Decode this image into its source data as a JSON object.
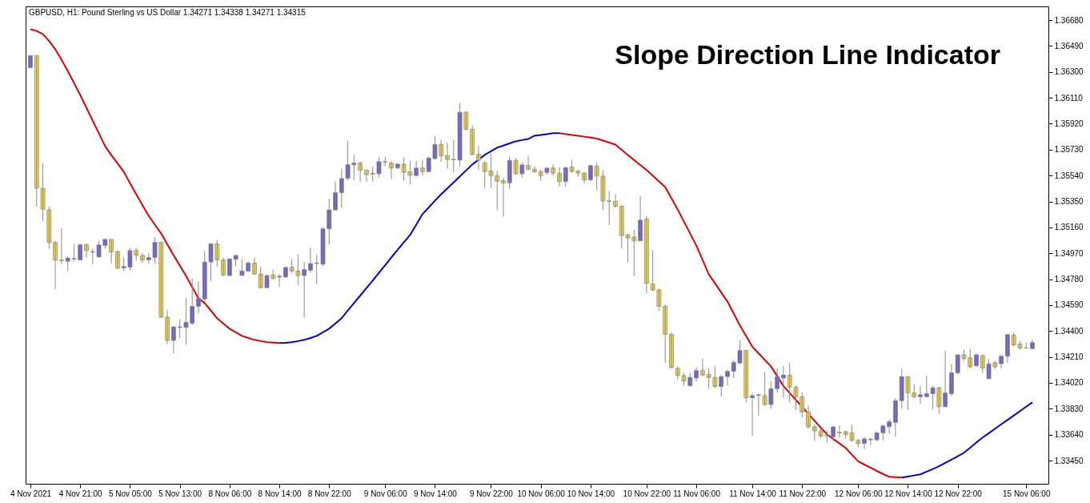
{
  "chart_data": {
    "type": "candlestick",
    "title": "Slope Direction Line Indicator",
    "subtitle": "GBPUSD, H1:  Pound Sterling vs US Dollar  1.34271 1.34338 1.34271 1.34315",
    "categories": [
      "4 Nov 2021",
      null,
      null,
      null,
      null,
      null,
      null,
      null,
      "4 Nov 21:00",
      null,
      null,
      null,
      null,
      null,
      null,
      null,
      "5 Nov 05:00",
      null,
      null,
      null,
      null,
      null,
      null,
      null,
      "5 Nov 13:00",
      null,
      null,
      null,
      null,
      null,
      null,
      null,
      "8 Nov 06:00",
      null,
      null,
      null,
      null,
      null,
      null,
      null,
      "8 Nov 14:00",
      null,
      null,
      null,
      null,
      null,
      null,
      null,
      "8 Nov 22:00",
      null,
      null,
      null,
      null,
      null,
      null,
      null,
      null,
      "9 Nov 06:00",
      null,
      null,
      null,
      null,
      null,
      null,
      null,
      "9 Nov 14:00",
      null,
      null,
      null,
      null,
      null,
      null,
      null,
      null,
      "9 Nov 22:00",
      null,
      null,
      null,
      null,
      null,
      null,
      null,
      "10 Nov 06:00",
      null,
      null,
      null,
      null,
      null,
      null,
      null,
      "10 Nov 14:00",
      null,
      null,
      null,
      null,
      null,
      null,
      null,
      null,
      "10 Nov 22:00",
      null,
      null,
      null,
      null,
      null,
      null,
      null,
      "11 Nov 06:00",
      null,
      null,
      null,
      null,
      null,
      null,
      null,
      null,
      "11 Nov 14:00",
      null,
      null,
      null,
      null,
      null,
      null,
      null,
      "11 Nov 22:00",
      null,
      null,
      null,
      null,
      null,
      null,
      null,
      null,
      "12 Nov 06:00",
      null,
      null,
      null,
      null,
      null,
      null,
      null,
      "12 Nov 14:00",
      null,
      null,
      null,
      null,
      null,
      null,
      null,
      "12 Nov 22:00",
      null,
      null,
      null,
      null,
      null,
      null,
      null,
      null,
      null,
      null,
      "15 Nov 06:00",
      null
    ],
    "ohlc": [
      [
        1.36331,
        1.3642,
        1.36331,
        1.3642
      ],
      [
        1.3642,
        1.3642,
        1.35315,
        1.35447
      ],
      [
        1.35447,
        1.35631,
        1.35209,
        1.35293
      ],
      [
        1.35288,
        1.3531,
        1.35001,
        1.3505
      ],
      [
        1.3505,
        1.35061,
        1.34707,
        1.34921
      ],
      [
        1.34921,
        1.35153,
        1.3489,
        1.34917
      ],
      [
        1.34912,
        1.3495,
        1.3484,
        1.34935
      ],
      [
        1.34928,
        1.35034,
        1.34912,
        1.34932
      ],
      [
        1.34921,
        1.35039,
        1.34917,
        1.35032
      ],
      [
        1.35032,
        1.35039,
        1.34939,
        1.3499
      ],
      [
        1.34979,
        1.35005,
        1.3489,
        1.34983
      ],
      [
        1.34943,
        1.35061,
        1.34939,
        1.35032
      ],
      [
        1.35027,
        1.35078,
        1.35005,
        1.35072
      ],
      [
        1.35072,
        1.35072,
        1.34895,
        1.34979
      ],
      [
        1.34983,
        1.3499,
        1.34851,
        1.34862
      ],
      [
        1.34862,
        1.34939,
        1.3484,
        1.34873
      ],
      [
        1.34868,
        1.3501,
        1.34844,
        1.3499
      ],
      [
        1.3499,
        1.3501,
        1.34917,
        1.34957
      ],
      [
        1.34954,
        1.34972,
        1.34899,
        1.34921
      ],
      [
        1.34921,
        1.34972,
        1.34895,
        1.34939
      ],
      [
        1.34939,
        1.35087,
        1.34895,
        1.3505
      ],
      [
        1.3505,
        1.3505,
        1.34497,
        1.34501
      ],
      [
        1.34501,
        1.34552,
        1.34303,
        1.34331
      ],
      [
        1.34331,
        1.34435,
        1.34236,
        1.34431
      ],
      [
        1.34426,
        1.34486,
        1.34347,
        1.34431
      ],
      [
        1.34426,
        1.34641,
        1.34298,
        1.34464
      ],
      [
        1.34457,
        1.34784,
        1.34442,
        1.34581
      ],
      [
        1.34581,
        1.34762,
        1.3453,
        1.34641
      ],
      [
        1.34634,
        1.34987,
        1.34612,
        1.34906
      ],
      [
        1.34906,
        1.35045,
        1.34767,
        1.35039
      ],
      [
        1.35039,
        1.35067,
        1.34873,
        1.34921
      ],
      [
        1.34921,
        1.34939,
        1.34802,
        1.34811
      ],
      [
        1.34807,
        1.34935,
        1.34802,
        1.34928
      ],
      [
        1.34926,
        1.34957,
        1.34873,
        1.34954
      ],
      [
        1.34807,
        1.34928,
        1.34807,
        1.3484
      ],
      [
        1.3484,
        1.34912,
        1.34833,
        1.34899
      ],
      [
        1.34899,
        1.34939,
        1.34811,
        1.34818
      ],
      [
        1.34818,
        1.34873,
        1.34711,
        1.34718
      ],
      [
        1.34718,
        1.34813,
        1.34711,
        1.34807
      ],
      [
        1.34811,
        1.34851,
        1.34778,
        1.34785
      ],
      [
        1.34796,
        1.34818,
        1.34723,
        1.34802
      ],
      [
        1.34796,
        1.34873,
        1.34789,
        1.34866
      ],
      [
        1.34868,
        1.34928,
        1.34824,
        1.3484
      ],
      [
        1.3484,
        1.34961,
        1.34736,
        1.34807
      ],
      [
        1.34807,
        1.34906,
        1.34497,
        1.34851
      ],
      [
        1.34846,
        1.3501,
        1.34829,
        1.34895
      ],
      [
        1.34895,
        1.34961,
        1.34745,
        1.34899
      ],
      [
        1.3489,
        1.3516,
        1.34877,
        1.35149
      ],
      [
        1.35149,
        1.3537,
        1.35034,
        1.35288
      ],
      [
        1.35288,
        1.35496,
        1.35282,
        1.35414
      ],
      [
        1.35414,
        1.35591,
        1.35304,
        1.35518
      ],
      [
        1.3552,
        1.35796,
        1.35503,
        1.3562
      ],
      [
        1.35618,
        1.3569,
        1.35503,
        1.35631
      ],
      [
        1.35631,
        1.35642,
        1.35492,
        1.3558
      ],
      [
        1.3558,
        1.35584,
        1.35496,
        1.35547
      ],
      [
        1.35551,
        1.35606,
        1.35496,
        1.35556
      ],
      [
        1.35553,
        1.35679,
        1.35525,
        1.35642
      ],
      [
        1.35642,
        1.35679,
        1.35606,
        1.35637
      ],
      [
        1.35631,
        1.35646,
        1.35514,
        1.35595
      ],
      [
        1.35595,
        1.35629,
        1.35591,
        1.35624
      ],
      [
        1.35624,
        1.35673,
        1.35503,
        1.35564
      ],
      [
        1.35567,
        1.35646,
        1.35474,
        1.35542
      ],
      [
        1.3554,
        1.35646,
        1.35536,
        1.35595
      ],
      [
        1.35595,
        1.35657,
        1.3554,
        1.35569
      ],
      [
        1.35569,
        1.35679,
        1.35564,
        1.35668
      ],
      [
        1.35664,
        1.35827,
        1.35657,
        1.35768
      ],
      [
        1.35768,
        1.35801,
        1.35642,
        1.35684
      ],
      [
        1.35686,
        1.35779,
        1.35591,
        1.35657
      ],
      [
        1.35659,
        1.35801,
        1.35562,
        1.35655
      ],
      [
        1.35653,
        1.36071,
        1.35606,
        1.36004
      ],
      [
        1.36004,
        1.36011,
        1.35872,
        1.35878
      ],
      [
        1.35878,
        1.35907,
        1.35686,
        1.35695
      ],
      [
        1.35695,
        1.35757,
        1.3558,
        1.35651
      ],
      [
        1.35631,
        1.35646,
        1.35447,
        1.35569
      ],
      [
        1.35573,
        1.35701,
        1.35452,
        1.3554
      ],
      [
        1.3554,
        1.35576,
        1.35286,
        1.35498
      ],
      [
        1.35503,
        1.35525,
        1.35237,
        1.35487
      ],
      [
        1.35487,
        1.35679,
        1.35443,
        1.35651
      ],
      [
        1.35651,
        1.35668,
        1.35547,
        1.35553
      ],
      [
        1.35553,
        1.35635,
        1.35525,
        1.35618
      ],
      [
        1.35613,
        1.35679,
        1.35576,
        1.35587
      ],
      [
        1.35584,
        1.35609,
        1.35558,
        1.35569
      ],
      [
        1.35569,
        1.35584,
        1.35503,
        1.3554
      ],
      [
        1.35562,
        1.35595,
        1.35547,
        1.35595
      ],
      [
        1.35595,
        1.3562,
        1.3554,
        1.35558
      ],
      [
        1.35558,
        1.35602,
        1.35458,
        1.35496
      ],
      [
        1.35496,
        1.35602,
        1.35458,
        1.35598
      ],
      [
        1.35602,
        1.35657,
        1.35562,
        1.35569
      ],
      [
        1.35573,
        1.3558,
        1.35531,
        1.35558
      ],
      [
        1.35558,
        1.35564,
        1.3548,
        1.35509
      ],
      [
        1.35509,
        1.3562,
        1.35496,
        1.35613
      ],
      [
        1.35609,
        1.35635,
        1.35432,
        1.35536
      ],
      [
        1.35536,
        1.3558,
        1.35288,
        1.35354
      ],
      [
        1.35354,
        1.35425,
        1.35178,
        1.3535
      ],
      [
        1.3535,
        1.35403,
        1.35304,
        1.35315
      ],
      [
        1.35315,
        1.35326,
        1.35005,
        1.351
      ],
      [
        1.35105,
        1.35116,
        1.34906,
        1.35083
      ],
      [
        1.35089,
        1.35142,
        1.34802,
        1.35061
      ],
      [
        1.35061,
        1.35392,
        1.35061,
        1.35213
      ],
      [
        1.3522,
        1.35244,
        1.34678,
        1.34749
      ],
      [
        1.34745,
        1.34994,
        1.34691,
        1.347
      ],
      [
        1.34702,
        1.34711,
        1.34546,
        1.34581
      ],
      [
        1.34581,
        1.34596,
        1.34166,
        1.34375
      ],
      [
        1.34375,
        1.34391,
        1.34126,
        1.34132
      ],
      [
        1.34126,
        1.34143,
        1.34044,
        1.34073
      ],
      [
        1.34073,
        1.34093,
        1.33999,
        1.34033
      ],
      [
        1.33999,
        1.34088,
        1.33993,
        1.3406
      ],
      [
        1.34055,
        1.34132,
        1.34029,
        1.3411
      ],
      [
        1.3411,
        1.34199,
        1.34073,
        1.34077
      ],
      [
        1.34082,
        1.34126,
        1.33977,
        1.3406
      ],
      [
        1.3406,
        1.34143,
        1.33984,
        1.33993
      ],
      [
        1.33993,
        1.34077,
        1.33918,
        1.34066
      ],
      [
        1.34066,
        1.34117,
        1.33999,
        1.34104
      ],
      [
        1.34104,
        1.34188,
        1.34055,
        1.3417
      ],
      [
        1.34166,
        1.34331,
        1.34154,
        1.34258
      ],
      [
        1.34258,
        1.34258,
        1.33878,
        1.33911
      ],
      [
        1.33911,
        1.33944,
        1.33631,
        1.33926
      ],
      [
        1.33929,
        1.3394,
        1.33778,
        1.33933
      ],
      [
        1.33926,
        1.34099,
        1.33852,
        1.33861
      ],
      [
        1.33861,
        1.34033,
        1.3383,
        1.33977
      ],
      [
        1.33977,
        1.34126,
        1.33949,
        1.34066
      ],
      [
        1.34055,
        1.34143,
        1.33911,
        1.34077
      ],
      [
        1.34077,
        1.34166,
        1.33874,
        1.33989
      ],
      [
        1.33989,
        1.33999,
        1.33823,
        1.33918
      ],
      [
        1.33918,
        1.33949,
        1.33768,
        1.33807
      ],
      [
        1.33807,
        1.33852,
        1.33684,
        1.33697
      ],
      [
        1.33697,
        1.33712,
        1.33595,
        1.33668
      ],
      [
        1.33668,
        1.33684,
        1.33613,
        1.33631
      ],
      [
        1.33631,
        1.33668,
        1.3358,
        1.33635
      ],
      [
        1.33624,
        1.33706,
        1.33591,
        1.33697
      ],
      [
        1.33653,
        1.33706,
        1.33617,
        1.33657
      ],
      [
        1.33662,
        1.33668,
        1.33609,
        1.33642
      ],
      [
        1.33653,
        1.33713,
        1.33587,
        1.33598
      ],
      [
        1.33598,
        1.33609,
        1.3355,
        1.33576
      ],
      [
        1.33576,
        1.33624,
        1.33532,
        1.33609
      ],
      [
        1.33602,
        1.3362,
        1.33558,
        1.33607
      ],
      [
        1.33602,
        1.33664,
        1.33594,
        1.33653
      ],
      [
        1.33653,
        1.33713,
        1.33598,
        1.33704
      ],
      [
        1.33698,
        1.33753,
        1.33647,
        1.33735
      ],
      [
        1.3373,
        1.33907,
        1.33626,
        1.33889
      ],
      [
        1.33889,
        1.34123,
        1.33831,
        1.34066
      ],
      [
        1.34066,
        1.34066,
        1.3382,
        1.33946
      ],
      [
        1.33946,
        1.34012,
        1.33907,
        1.33918
      ],
      [
        1.33918,
        1.33999,
        1.33867,
        1.33933
      ],
      [
        1.33918,
        1.34072,
        1.33911,
        1.3394
      ],
      [
        1.3394,
        1.33999,
        1.33825,
        1.33984
      ],
      [
        1.33984,
        1.33991,
        1.33792,
        1.33845
      ],
      [
        1.33845,
        1.34255,
        1.33842,
        1.33946
      ],
      [
        1.3394,
        1.3416,
        1.33924,
        1.34094
      ],
      [
        1.34094,
        1.34226,
        1.34083,
        1.34226
      ],
      [
        1.34226,
        1.34264,
        1.34182,
        1.34198
      ],
      [
        1.34204,
        1.3427,
        1.34127,
        1.34138
      ],
      [
        1.34145,
        1.34233,
        1.34138,
        1.34226
      ],
      [
        1.3422,
        1.34226,
        1.34094,
        1.34127
      ],
      [
        1.3405,
        1.34193,
        1.3405,
        1.3416
      ],
      [
        1.34167,
        1.34182,
        1.34123,
        1.34138
      ],
      [
        1.3416,
        1.34226,
        1.34123,
        1.34215
      ],
      [
        1.34215,
        1.34374,
        1.34167,
        1.34374
      ],
      [
        1.3437,
        1.34392,
        1.34286,
        1.34299
      ],
      [
        1.34304,
        1.34326,
        1.34264,
        1.34277
      ],
      [
        1.34277,
        1.34315,
        1.34271,
        1.34275
      ],
      [
        1.34271,
        1.34338,
        1.34271,
        1.34315
      ]
    ],
    "colors": [
      "#6a5acd",
      "#f5d33c",
      "#f5d33c",
      "#f5d33c",
      "#f5d33c",
      "#f5d33c",
      "#6a5acd",
      "#6a5acd",
      "#6a5acd",
      "#f5d33c",
      "#6a5acd",
      "#6a5acd",
      "#6a5acd",
      "#f5d33c",
      "#f5d33c",
      "#6a5acd",
      "#6a5acd",
      "#f5d33c",
      "#f5d33c",
      "#6a5acd",
      "#6a5acd",
      "#f5d33c",
      "#f5d33c",
      "#6a5acd",
      "#6a5acd",
      "#6a5acd",
      "#6a5acd",
      "#6a5acd",
      "#6a5acd",
      "#6a5acd",
      "#f5d33c",
      "#f5d33c",
      "#6a5acd",
      "#6a5acd",
      "#6a5acd",
      "#6a5acd",
      "#f5d33c",
      "#f5d33c",
      "#6a5acd",
      "#f5d33c",
      "#6a5acd",
      "#6a5acd",
      "#f5d33c",
      "#f5d33c",
      "#6a5acd",
      "#6a5acd",
      "#6a5acd",
      "#6a5acd",
      "#6a5acd",
      "#6a5acd",
      "#6a5acd",
      "#6a5acd",
      "#6a5acd",
      "#f5d33c",
      "#f5d33c",
      "#6a5acd",
      "#6a5acd",
      "#f5d33c",
      "#f5d33c",
      "#6a5acd",
      "#f5d33c",
      "#f5d33c",
      "#6a5acd",
      "#f5d33c",
      "#6a5acd",
      "#6a5acd",
      "#f5d33c",
      "#f5d33c",
      "#f5d33c",
      "#6a5acd",
      "#f5d33c",
      "#f5d33c",
      "#f5d33c",
      "#f5d33c",
      "#f5d33c",
      "#f5d33c",
      "#f5d33c",
      "#6a5acd",
      "#f5d33c",
      "#6a5acd",
      "#f5d33c",
      "#f5d33c",
      "#f5d33c",
      "#6a5acd",
      "#f5d33c",
      "#f5d33c",
      "#6a5acd",
      "#f5d33c",
      "#f5d33c",
      "#f5d33c",
      "#6a5acd",
      "#f5d33c",
      "#f5d33c",
      "#f5d33c",
      "#f5d33c",
      "#f5d33c",
      "#f5d33c",
      "#f5d33c",
      "#6a5acd",
      "#f5d33c",
      "#f5d33c",
      "#f5d33c",
      "#f5d33c",
      "#f5d33c",
      "#f5d33c",
      "#f5d33c",
      "#6a5acd",
      "#6a5acd",
      "#f5d33c",
      "#f5d33c",
      "#f5d33c",
      "#6a5acd",
      "#6a5acd",
      "#6a5acd",
      "#6a5acd",
      "#f5d33c",
      "#6a5acd",
      "#6a5acd",
      "#f5d33c",
      "#6a5acd",
      "#6a5acd",
      "#6a5acd",
      "#f5d33c",
      "#f5d33c",
      "#f5d33c",
      "#f5d33c",
      "#f5d33c",
      "#f5d33c",
      "#6a5acd",
      "#6a5acd",
      "#6a5acd",
      "#f5d33c",
      "#f5d33c",
      "#f5d33c",
      "#6a5acd",
      "#6a5acd",
      "#6a5acd",
      "#6a5acd",
      "#6a5acd",
      "#6a5acd",
      "#6a5acd",
      "#f5d33c",
      "#f5d33c",
      "#6a5acd",
      "#6a5acd",
      "#6a5acd",
      "#f5d33c",
      "#6a5acd",
      "#6a5acd",
      "#6a5acd",
      "#f5d33c",
      "#f5d33c",
      "#6a5acd",
      "#f5d33c",
      "#6a5acd",
      "#f5d33c",
      "#6a5acd",
      "#6a5acd",
      "#f5d33c",
      "#f5d33c",
      "#f5d33c",
      "#6a5acd"
    ],
    "series": [
      {
        "type": "line",
        "color": "#dd0000",
        "values": [
          1.36613,
          1.366,
          1.36577,
          1.36527,
          1.36466,
          1.3639,
          1.36307,
          1.3622,
          1.36131,
          1.36037,
          1.35943,
          1.3585,
          1.35756,
          1.3569,
          1.3563,
          1.35568,
          1.35485,
          1.35403,
          1.35324,
          1.35245,
          1.3518,
          1.35116,
          1.35036,
          1.34957,
          1.34881,
          1.34805,
          1.34722,
          1.3464,
          1.34605,
          1.3455,
          1.34494,
          1.34455,
          1.34417,
          1.3439,
          1.34364,
          1.34349,
          1.34335,
          1.34326,
          1.34318,
          1.34315,
          1.34312,
          null,
          null,
          null,
          null,
          null,
          null,
          null,
          null,
          null,
          null,
          null,
          null,
          null,
          null,
          null,
          null,
          null,
          null,
          null,
          null,
          null,
          null,
          null,
          null,
          null,
          null,
          null,
          null,
          null,
          null,
          null,
          null,
          null,
          null,
          null,
          null,
          null,
          null,
          null,
          null,
          null,
          null,
          null,
          null,
          1.3585,
          1.35844,
          1.35838,
          1.35832,
          1.35825,
          1.35818,
          1.35811,
          1.35796,
          1.35782,
          1.35767,
          1.35729,
          1.35691,
          1.35654,
          1.35617,
          1.3558,
          1.35539,
          1.35497,
          1.35456,
          1.35374,
          1.35292,
          1.35204,
          1.35116,
          1.35028,
          1.34922,
          1.34816,
          1.3475,
          1.34683,
          1.34617,
          1.34529,
          1.34441,
          1.34363,
          1.34285,
          1.34237,
          1.34189,
          1.34141,
          1.34069,
          1.33997,
          1.33946,
          1.33895,
          1.33844,
          1.33793,
          1.33742,
          1.33692,
          1.33642,
          1.33609,
          1.33576,
          1.33543,
          1.33494,
          1.33445,
          1.33421,
          1.33398,
          1.33374,
          1.33352,
          1.33331,
          1.33328,
          1.33325,
          null,
          null,
          null,
          null,
          null,
          null,
          null,
          null,
          null,
          null,
          null,
          null,
          null,
          null,
          null,
          null,
          null,
          null,
          null,
          null,
          null
        ]
      },
      {
        "type": "line",
        "color": "#0000cc",
        "values": [
          null,
          null,
          null,
          null,
          null,
          null,
          null,
          null,
          null,
          null,
          null,
          null,
          null,
          null,
          null,
          null,
          null,
          null,
          null,
          null,
          null,
          null,
          null,
          null,
          null,
          null,
          null,
          null,
          null,
          null,
          null,
          null,
          null,
          null,
          null,
          null,
          null,
          null,
          null,
          null,
          1.34312,
          1.34314,
          1.34318,
          1.34326,
          1.34335,
          1.34349,
          1.34364,
          1.3439,
          1.34417,
          1.34455,
          1.34494,
          1.3455,
          1.34605,
          1.3466,
          1.34715,
          1.34769,
          1.34826,
          1.34883,
          1.3494,
          1.34995,
          1.3505,
          1.35104,
          1.3518,
          1.35257,
          1.35306,
          1.35355,
          1.35403,
          1.35446,
          1.3549,
          1.35533,
          1.35577,
          1.35621,
          1.35656,
          1.35691,
          1.35718,
          1.35744,
          1.3576,
          1.35776,
          1.35791,
          1.358,
          1.35808,
          1.35832,
          1.35838,
          1.35844,
          1.3585,
          1.3585,
          null,
          null,
          null,
          null,
          null,
          null,
          null,
          null,
          null,
          null,
          null,
          null,
          null,
          null,
          null,
          null,
          null,
          null,
          null,
          null,
          null,
          null,
          null,
          null,
          null,
          null,
          null,
          null,
          null,
          null,
          null,
          null,
          null,
          null,
          null,
          null,
          null,
          null,
          null,
          null,
          null,
          null,
          null,
          null,
          null,
          null,
          null,
          null,
          null,
          null,
          null,
          null,
          null,
          null,
          1.33325,
          1.33333,
          1.33341,
          1.33349,
          1.33369,
          1.33388,
          1.33408,
          1.33433,
          1.33457,
          1.33482,
          1.33507,
          1.33544,
          1.33582,
          1.33619,
          1.33651,
          1.33684,
          1.33716,
          1.33748,
          1.3378,
          1.33813,
          1.33845,
          1.33877
        ]
      }
    ],
    "ylim": [
      1.3328,
      1.3678
    ],
    "yticks": [
      {
        "value": 1.3668,
        "label": "1.36680"
      },
      {
        "value": 1.3649,
        "label": "1.36490"
      },
      {
        "value": 1.363,
        "label": "1.36300"
      },
      {
        "value": 1.3611,
        "label": "1.36110"
      },
      {
        "value": 1.3592,
        "label": "1.35920"
      },
      {
        "value": 1.3573,
        "label": "1.35730"
      },
      {
        "value": 1.3554,
        "label": "1.35540"
      },
      {
        "value": 1.3535,
        "label": "1.35350"
      },
      {
        "value": 1.3516,
        "label": "1.35160"
      },
      {
        "value": 1.3497,
        "label": "1.34970"
      },
      {
        "value": 1.3478,
        "label": "1.34780"
      },
      {
        "value": 1.3459,
        "label": "1.34590"
      },
      {
        "value": 1.344,
        "label": "1.34400"
      },
      {
        "value": 1.3421,
        "label": "1.34210"
      },
      {
        "value": 1.3402,
        "label": "1.34020"
      },
      {
        "value": 1.3383,
        "label": "1.33830"
      },
      {
        "value": 1.3364,
        "label": "1.33640"
      },
      {
        "value": 1.3345,
        "label": "1.33450"
      }
    ],
    "grid": false,
    "marker": "none",
    "line_style": "solid"
  }
}
